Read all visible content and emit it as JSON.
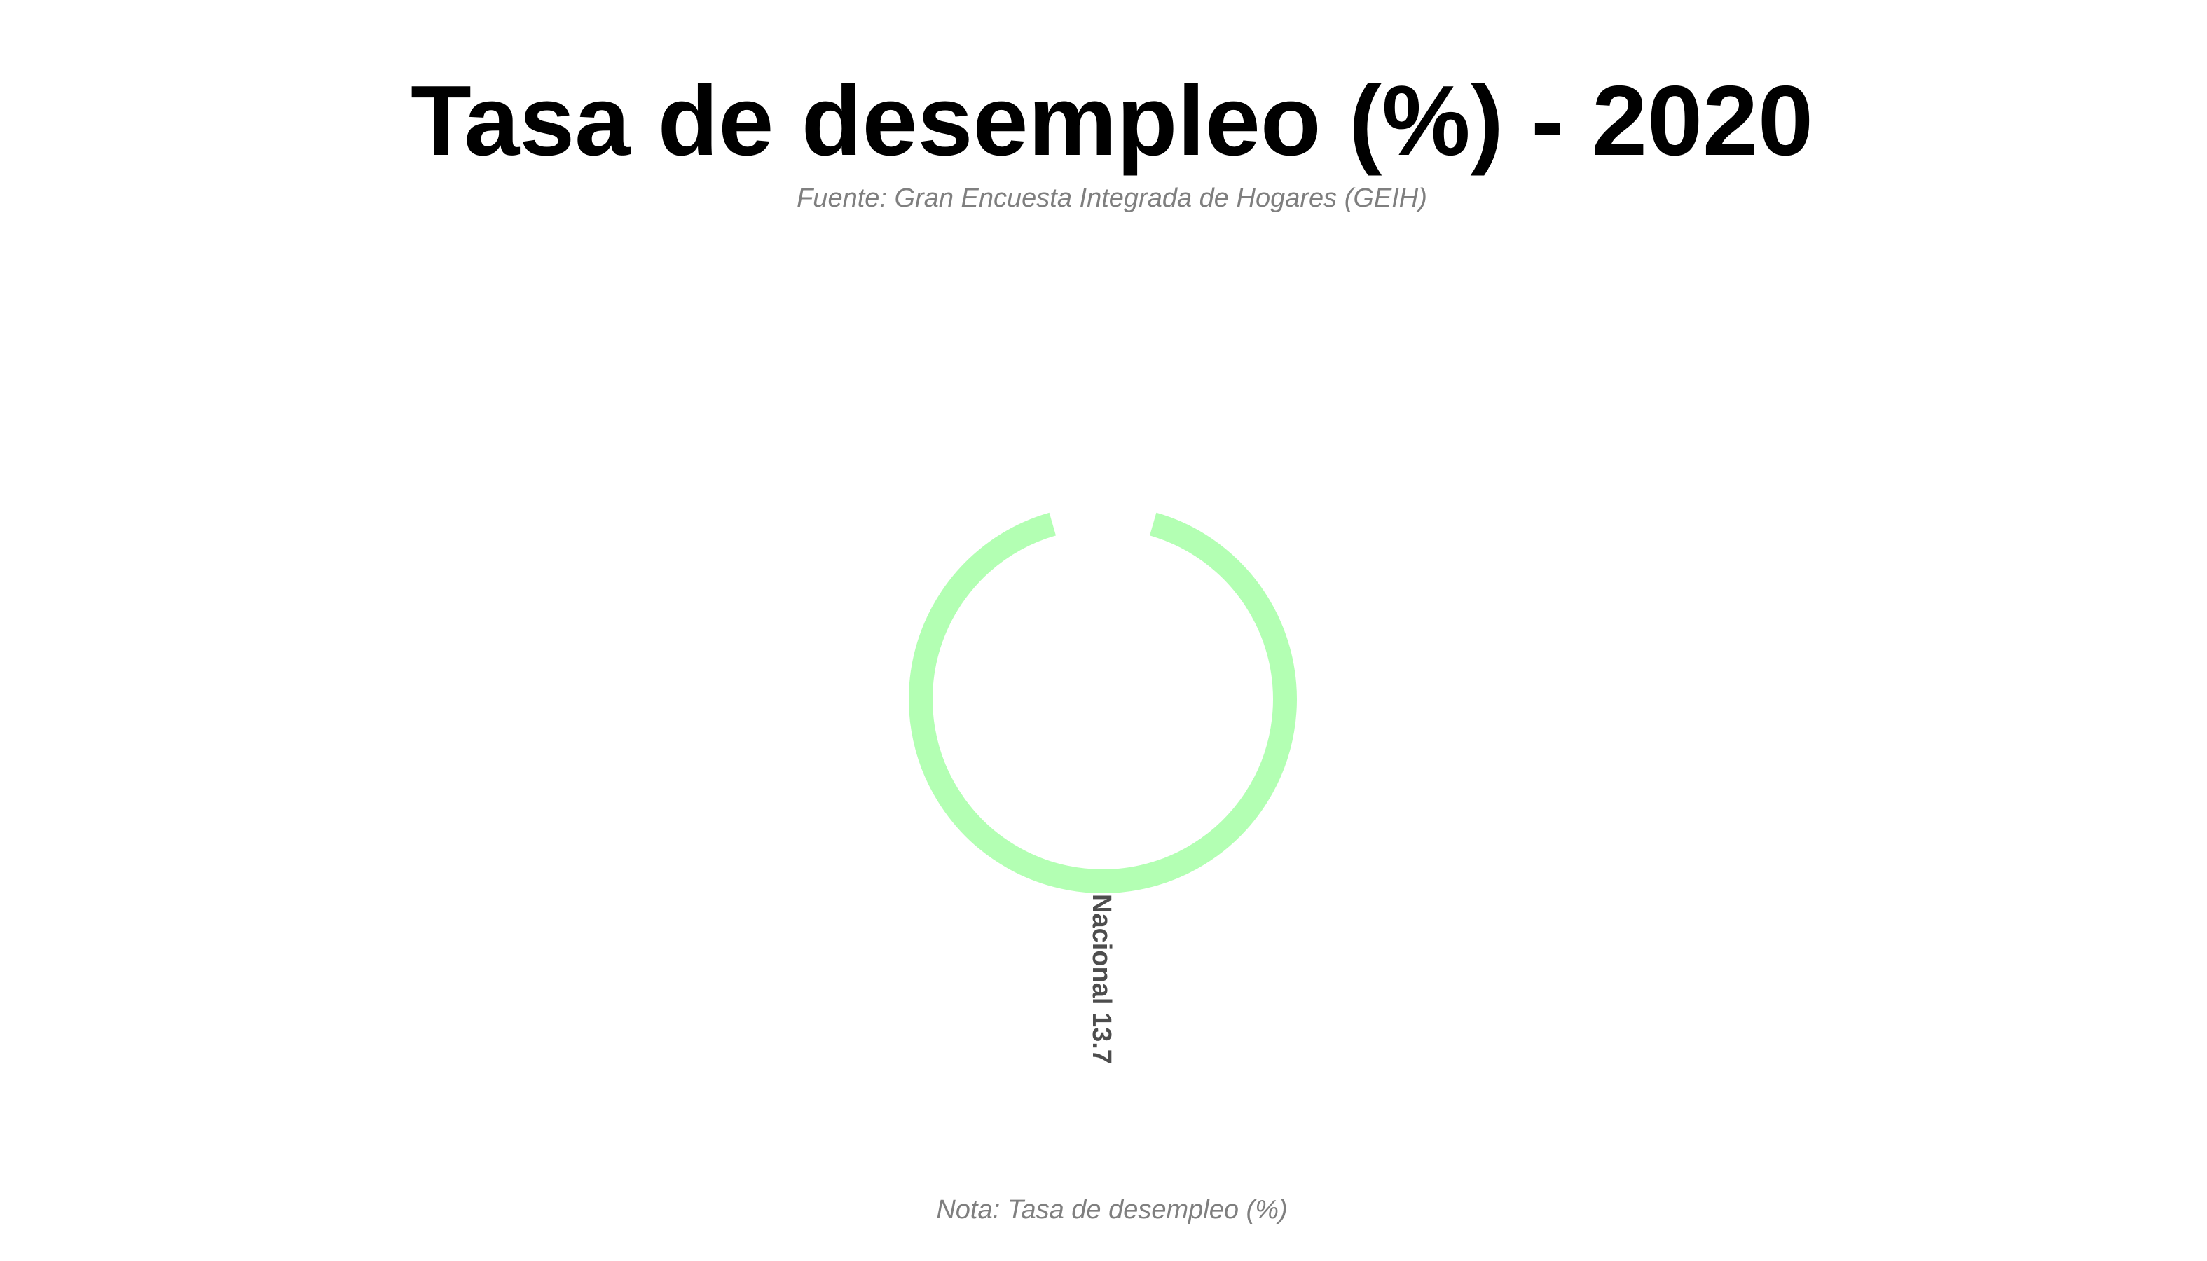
{
  "chart_data": {
    "type": "bar",
    "coordinate_system": "polar",
    "title": "Tasa de desempleo (%) - 2020",
    "subtitle": "Fuente: Gran Encuesta Integrada de Hogares (GEIH)",
    "caption": "Nota: Tasa de desempleo (%)",
    "categories": [
      "Nacional"
    ],
    "values": [
      13.7
    ],
    "labels": [
      "Nacional 13.7"
    ],
    "colors": [
      "#b3ffb3"
    ],
    "grid": false,
    "legend": "none"
  }
}
